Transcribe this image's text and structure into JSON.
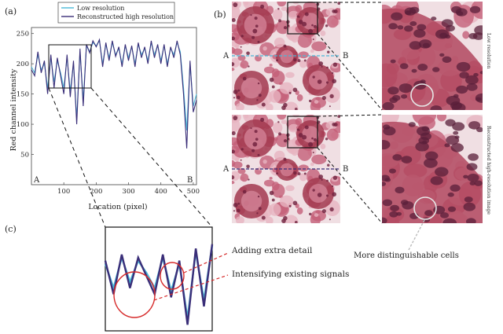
{
  "panel_labels": {
    "a": "(a)",
    "b": "(b)",
    "c": "(c)"
  },
  "colors": {
    "low_res": "#4ab8d8",
    "high_res": "#3a2e78",
    "annotation": "#d62a2a",
    "tissue_bg": "#f0dfe3",
    "tissue_dark": "#a2384f"
  },
  "chart_data": {
    "type": "line",
    "xlabel": "Location (pixel)",
    "ylabel": "Red channel intensity",
    "xlim": [
      0,
      510
    ],
    "ylim": [
      0,
      260
    ],
    "xticks": [
      "100",
      "200",
      "300",
      "400",
      "500"
    ],
    "yticks": [
      "50",
      "100",
      "150",
      "200",
      "250"
    ],
    "legend_placement": "top",
    "point_labels": {
      "start": "A",
      "end": "B"
    },
    "x": [
      0,
      10,
      20,
      30,
      40,
      50,
      60,
      70,
      80,
      90,
      100,
      110,
      120,
      130,
      140,
      150,
      160,
      170,
      180,
      190,
      200,
      210,
      220,
      230,
      240,
      250,
      260,
      270,
      280,
      290,
      300,
      310,
      320,
      330,
      340,
      350,
      360,
      370,
      380,
      390,
      400,
      410,
      420,
      430,
      440,
      450,
      460,
      470,
      480,
      490,
      500,
      510
    ],
    "series": [
      {
        "name": "Low resolution",
        "values": [
          195,
          185,
          215,
          190,
          200,
          160,
          210,
          170,
          205,
          185,
          160,
          210,
          155,
          200,
          110,
          220,
          140,
          230,
          220,
          235,
          230,
          238,
          200,
          232,
          210,
          235,
          215,
          225,
          200,
          230,
          210,
          228,
          200,
          232,
          215,
          225,
          205,
          235,
          215,
          230,
          205,
          230,
          200,
          226,
          215,
          235,
          220,
          160,
          90,
          200,
          130,
          150
        ]
      },
      {
        "name": "Reconstructed high resolution",
        "values": [
          190,
          180,
          220,
          185,
          205,
          150,
          215,
          160,
          210,
          180,
          150,
          215,
          145,
          205,
          100,
          225,
          130,
          232,
          218,
          238,
          228,
          240,
          195,
          235,
          205,
          238,
          212,
          228,
          195,
          232,
          205,
          230,
          195,
          235,
          210,
          228,
          200,
          238,
          210,
          232,
          200,
          232,
          195,
          228,
          210,
          238,
          215,
          150,
          60,
          205,
          120,
          140
        ]
      }
    ]
  },
  "panel_b": {
    "row_labels": [
      "Low resolution",
      "Reconstructed high-resolution image"
    ],
    "point_labels": {
      "start": "A",
      "end": "B"
    }
  },
  "panel_c": {
    "annotations": [
      "Adding extra detail",
      "Intensifying existing signals"
    ]
  },
  "caption_cells": "More distinguishable cells"
}
